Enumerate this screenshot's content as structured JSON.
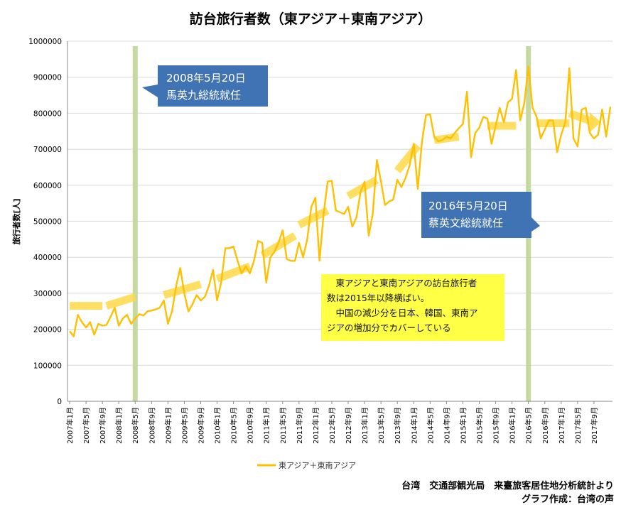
{
  "chart_data": {
    "type": "line",
    "title": "訪台旅行者数（東アジア＋東南アジア）",
    "ylabel": "旅行者数[人]",
    "xlabel": "",
    "ylim": [
      0,
      1000000
    ],
    "yticks": [
      0,
      100000,
      200000,
      300000,
      400000,
      500000,
      600000,
      700000,
      800000,
      900000,
      1000000
    ],
    "xtick_labels": [
      "2007年1月",
      "2007年5月",
      "2007年9月",
      "2008年1月",
      "2008年5月",
      "2008年9月",
      "2009年1月",
      "2009年5月",
      "2009年9月",
      "2010年1月",
      "2010年5月",
      "2010年9月",
      "2011年1月",
      "2011年5月",
      "2011年9月",
      "2012年1月",
      "2012年5月",
      "2012年9月",
      "2013年1月",
      "2013年5月",
      "2013年9月",
      "2014年1月",
      "2014年5月",
      "2014年9月",
      "2015年1月",
      "2015年5月",
      "2015年9月",
      "2016年1月",
      "2016年5月",
      "2016年9月",
      "2017年1月",
      "2017年5月",
      "2017年9月"
    ],
    "series": [
      {
        "name": "東アジア＋東南アジア",
        "color": "#ffc000",
        "x_start": "2007年1月",
        "values": [
          195000,
          180000,
          240000,
          220000,
          205000,
          220000,
          185000,
          215000,
          210000,
          212000,
          235000,
          260000,
          210000,
          230000,
          240000,
          215000,
          230000,
          242000,
          238000,
          250000,
          252000,
          255000,
          260000,
          280000,
          215000,
          250000,
          320000,
          370000,
          300000,
          250000,
          270000,
          295000,
          280000,
          290000,
          320000,
          365000,
          280000,
          330000,
          425000,
          425000,
          430000,
          390000,
          355000,
          375000,
          355000,
          390000,
          445000,
          440000,
          330000,
          400000,
          415000,
          440000,
          475000,
          395000,
          390000,
          390000,
          440000,
          400000,
          450000,
          540000,
          565000,
          390000,
          520000,
          610000,
          612000,
          530000,
          525000,
          520000,
          540000,
          485000,
          510000,
          580000,
          610000,
          460000,
          520000,
          670000,
          610000,
          545000,
          555000,
          560000,
          615000,
          595000,
          620000,
          655000,
          715000,
          590000,
          720000,
          795000,
          797000,
          735000,
          722000,
          725000,
          735000,
          730000,
          745000,
          758000,
          770000,
          860000,
          678000,
          745000,
          760000,
          790000,
          785000,
          715000,
          765000,
          815000,
          775000,
          830000,
          840000,
          920000,
          780000,
          828000,
          930000,
          815000,
          790000,
          730000,
          755000,
          780000,
          780000,
          692000,
          740000,
          775000,
          925000,
          730000,
          708000,
          810000,
          815000,
          745000,
          730000,
          740000,
          810000,
          735000,
          818000
        ]
      }
    ],
    "trend_segments": [
      {
        "from": "2007年1月",
        "to": "2007年9月",
        "y_from": 265000,
        "y_to": 265000
      },
      {
        "from": "2007年10月",
        "to": "2008年5月",
        "y_from": 265000,
        "y_to": 290000
      },
      {
        "from": "2008年12月",
        "to": "2009年9月",
        "y_from": 295000,
        "y_to": 325000
      },
      {
        "from": "2010年1月",
        "to": "2010年9月",
        "y_from": 340000,
        "y_to": 375000
      },
      {
        "from": "2010年12月",
        "to": "2011年8月",
        "y_from": 405000,
        "y_to": 460000
      },
      {
        "from": "2011年9月",
        "to": "2012年4月",
        "y_from": 490000,
        "y_to": 530000
      },
      {
        "from": "2012年9月",
        "to": "2013年4月",
        "y_from": 570000,
        "y_to": 615000
      },
      {
        "from": "2013年9月",
        "to": "2014年2月",
        "y_from": 640000,
        "y_to": 710000
      },
      {
        "from": "2014年6月",
        "to": "2014年12月",
        "y_from": 725000,
        "y_to": 735000
      },
      {
        "from": "2015年7月",
        "to": "2016年2月",
        "y_from": 765000,
        "y_to": 765000
      },
      {
        "from": "2016年7月",
        "to": "2017年3月",
        "y_from": 772000,
        "y_to": 772000
      },
      {
        "from": "2017年3月",
        "to": "2017年9月",
        "y_from": 800000,
        "y_to": 775000
      }
    ],
    "vertical_markers": [
      "2008年5月",
      "2016年5月"
    ],
    "legend": "bottom",
    "grid": true
  },
  "annotations": {
    "callout1_line1": "2008年5月20日",
    "callout1_line2": "馬英九総統就任",
    "callout2_line1": "2016年5月20日",
    "callout2_line2": "蔡英文総統就任",
    "note_line1": "　東アジアと東南アジアの訪台旅行者",
    "note_line2": "数は2015年以降横ばい。",
    "note_line3": "　中国の減少分を日本、韓国、東南ア",
    "note_line4": "ジアの増加分でカバーしている"
  },
  "source": {
    "line1": "台湾　交通部観光局　来臺旅客居住地分析統計より",
    "line2": "グラフ作成：台湾の声"
  },
  "colors": {
    "line": "#ffc000",
    "trend": "#ffd94a",
    "marker": "#c6d9a0",
    "callout": "#3f73b3",
    "note": "#ffff45",
    "grid": "#d9d9d9"
  }
}
